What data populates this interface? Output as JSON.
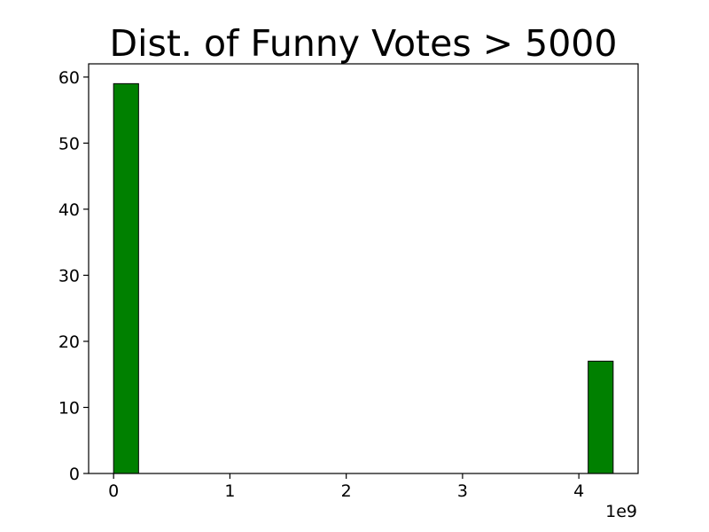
{
  "chart_data": {
    "type": "bar",
    "title": "Dist. of Funny Votes > 5000",
    "xlabel": "",
    "ylabel": "",
    "x_offset_label": "1e9",
    "x_scale": 1000000000,
    "xlim": [
      -0.2147,
      4.5094
    ],
    "ylim": [
      0,
      62
    ],
    "x_ticks": [
      0,
      1,
      2,
      3,
      4
    ],
    "x_tick_labels": [
      "0",
      "1",
      "2",
      "3",
      "4"
    ],
    "y_ticks": [
      0,
      10,
      20,
      30,
      40,
      50,
      60
    ],
    "y_tick_labels": [
      "0",
      "10",
      "20",
      "30",
      "40",
      "50",
      "60"
    ],
    "bin_width": 0.2147,
    "bins": [
      {
        "x_start": 0.0,
        "x_end": 0.2147,
        "count": 59
      },
      {
        "x_start": 4.0801,
        "x_end": 4.2948,
        "count": 17
      }
    ],
    "bar_color": "#008000",
    "edge_color": "#000000",
    "grid": false,
    "legend": "none"
  }
}
